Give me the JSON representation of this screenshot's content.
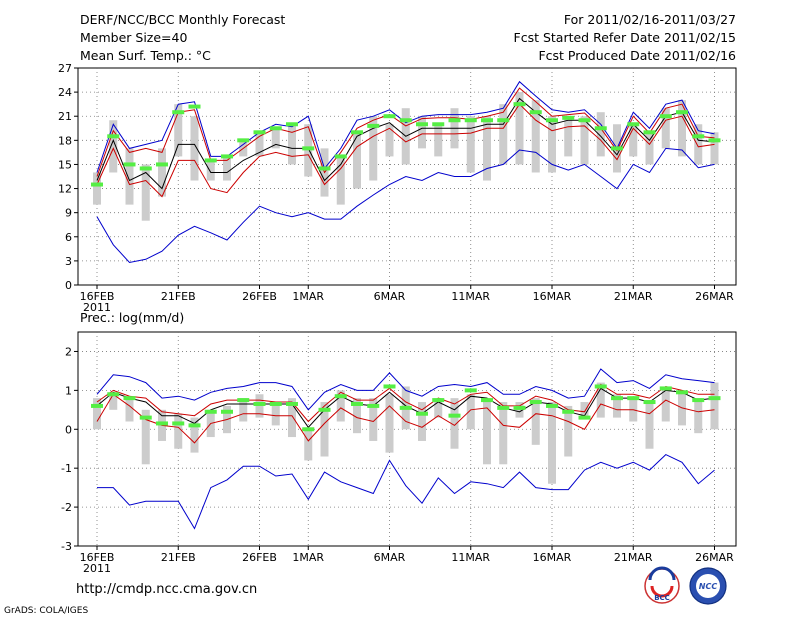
{
  "header": {
    "title": "DERF/NCC/BCC Monthly Forecast",
    "member_size": "Member Size=40",
    "variable": "Mean Surf. Temp.: °C",
    "period": "For 2011/02/16-2011/03/27",
    "started": "Fcst Started Refer Date 2011/02/15",
    "produced": "Fcst Produced Date 2011/02/16"
  },
  "second_title": "Prec.: log(mm/d)",
  "footer": {
    "url": "http://cmdp.ncc.cma.gov.cn",
    "grads": "GrADS: COLA/IGES"
  },
  "logos": {
    "bcc_text": "BCC",
    "ncc_text": "NCC"
  },
  "colors": {
    "max_min": "#0000cc",
    "quantile": "#cc0000",
    "mean": "#000000",
    "obs": "#55ee44",
    "spread": "#cccccc"
  },
  "chart_data": [
    {
      "type": "line",
      "title": "Mean Surf. Temp.: °C",
      "x_tick_labels": [
        "16FEB",
        "21FEB",
        "26FEB",
        "1MAR",
        "6MAR",
        "11MAR",
        "16MAR",
        "21MAR",
        "26MAR"
      ],
      "x_tick_index": [
        0,
        5,
        10,
        13,
        18,
        23,
        28,
        33,
        38
      ],
      "x_year_label": "2011",
      "ylim": [
        0,
        27
      ],
      "yticks": [
        0,
        3,
        6,
        9,
        12,
        15,
        18,
        21,
        24,
        27
      ],
      "ytick_labels": [
        "0",
        "3",
        "6",
        "9",
        "12",
        "15",
        "18",
        "21",
        "24",
        "27"
      ],
      "series": [
        {
          "name": "max",
          "values": [
            14,
            20,
            17,
            17.5,
            18,
            22.5,
            22.8,
            16,
            16,
            17.5,
            19,
            20,
            19.7,
            21,
            14.5,
            17,
            20.5,
            21,
            21.8,
            20.2,
            21,
            21.2,
            21.2,
            21.2,
            21.5,
            22,
            25.3,
            23.5,
            21.8,
            21.5,
            21.8,
            20,
            17,
            21.5,
            19.5,
            22.5,
            23,
            19.2,
            18.8
          ]
        },
        {
          "name": "q75",
          "values": [
            13.5,
            19.2,
            16.5,
            17,
            16.5,
            21.5,
            21.8,
            15.5,
            15.5,
            17,
            18.5,
            19.5,
            19,
            19.7,
            14,
            16.5,
            19.5,
            20.5,
            21.2,
            19.8,
            20.7,
            20.8,
            20.8,
            20.6,
            21,
            21.5,
            24.5,
            22.8,
            21,
            21.2,
            21.4,
            19.5,
            16.7,
            21,
            18.9,
            22,
            22.5,
            18.5,
            18.3
          ]
        },
        {
          "name": "mean",
          "values": [
            13,
            18,
            13,
            14,
            12,
            17.5,
            17.5,
            14,
            14,
            15.5,
            16.5,
            17.5,
            17,
            17,
            13,
            15,
            18.5,
            19.5,
            20.2,
            18.5,
            19.5,
            19.5,
            19.5,
            19.5,
            20,
            20,
            23.2,
            21.5,
            20,
            20.5,
            20.5,
            18.5,
            16.2,
            20,
            18,
            21,
            21.5,
            18,
            17.8
          ]
        },
        {
          "name": "q25",
          "values": [
            12.5,
            17,
            12.5,
            13,
            11,
            15.5,
            15.5,
            12,
            11.5,
            14,
            16,
            16.5,
            16,
            16.2,
            12.5,
            14.5,
            17.2,
            18.5,
            19.5,
            17.8,
            18.8,
            18.8,
            18.8,
            18.9,
            19.5,
            19.5,
            22.5,
            20.5,
            19.2,
            19.7,
            19.8,
            18,
            15.6,
            19.5,
            17.5,
            20.5,
            21,
            17.2,
            17.5
          ]
        },
        {
          "name": "min",
          "values": [
            8.5,
            5,
            2.8,
            3.2,
            4.2,
            6.2,
            7.3,
            6.5,
            5.6,
            7.8,
            9.8,
            9,
            8.5,
            9,
            8.2,
            8.2,
            9.8,
            11.2,
            12.5,
            13.5,
            13,
            14,
            13.5,
            13.5,
            14.5,
            15,
            16.8,
            16.5,
            15,
            14.3,
            15,
            13.5,
            12,
            15,
            14,
            17,
            16.8,
            14.6,
            15
          ]
        }
      ],
      "spread_bars": [
        [
          10,
          14
        ],
        [
          14,
          20.5
        ],
        [
          10,
          17
        ],
        [
          8,
          15
        ],
        [
          11,
          17
        ],
        [
          16,
          22.5
        ],
        [
          13,
          21
        ],
        [
          13,
          15.5
        ],
        [
          13,
          16
        ],
        [
          16,
          18
        ],
        [
          16,
          19
        ],
        [
          17,
          19.5
        ],
        [
          15,
          20
        ],
        [
          13.5,
          20
        ],
        [
          11,
          17
        ],
        [
          10,
          16
        ],
        [
          12,
          19
        ],
        [
          13,
          21
        ],
        [
          16,
          20
        ],
        [
          15,
          22
        ],
        [
          17,
          21
        ],
        [
          16,
          20
        ],
        [
          17,
          22
        ],
        [
          14,
          21
        ],
        [
          13,
          21
        ],
        [
          15,
          22.5
        ],
        [
          15,
          24
        ],
        [
          14,
          23
        ],
        [
          14,
          21
        ],
        [
          16,
          21
        ],
        [
          15,
          21
        ],
        [
          16,
          21.5
        ],
        [
          14,
          20
        ],
        [
          16,
          20
        ],
        [
          15,
          19
        ],
        [
          17,
          22
        ],
        [
          16,
          23
        ],
        [
          15,
          20
        ],
        [
          15,
          19
        ]
      ],
      "obs": [
        12.5,
        18.5,
        15,
        14.5,
        15,
        21.5,
        22.2,
        15.5,
        16,
        18,
        19,
        19.5,
        20,
        17,
        14.5,
        16,
        19,
        19.8,
        21,
        20.5,
        20,
        20,
        20.5,
        20.5,
        20.5,
        20.5,
        22.5,
        21.5,
        20.5,
        20.8,
        20.5,
        19.5,
        17,
        20,
        19,
        21,
        21.5,
        18.5,
        18
      ]
    },
    {
      "type": "line",
      "title": "Prec.: log(mm/d)",
      "x_tick_labels": [
        "16FEB",
        "21FEB",
        "26FEB",
        "1MAR",
        "6MAR",
        "11MAR",
        "16MAR",
        "21MAR",
        "26MAR"
      ],
      "x_tick_index": [
        0,
        5,
        10,
        13,
        18,
        23,
        28,
        33,
        38
      ],
      "x_year_label": "2011",
      "ylim": [
        -3,
        2.5
      ],
      "yticks": [
        -3,
        -2,
        -1,
        0,
        1,
        2
      ],
      "ytick_labels": [
        "-3",
        "-2",
        "-1",
        "0",
        "1",
        "2"
      ],
      "series": [
        {
          "name": "max",
          "values": [
            0.9,
            1.4,
            1.35,
            1.2,
            0.8,
            0.85,
            0.75,
            0.95,
            1.05,
            1.1,
            1.2,
            1.2,
            1.1,
            0.5,
            0.95,
            1.15,
            1.0,
            1.0,
            1.45,
            1.0,
            0.85,
            1.1,
            1.15,
            1.1,
            1.2,
            0.9,
            0.9,
            1.1,
            1.0,
            0.8,
            0.85,
            1.55,
            1.2,
            1.25,
            1.05,
            1.4,
            1.3,
            1.25,
            1.2
          ]
        },
        {
          "name": "q75",
          "values": [
            0.7,
            1.0,
            0.85,
            0.8,
            0.45,
            0.4,
            0.35,
            0.65,
            0.75,
            0.75,
            0.75,
            0.7,
            0.7,
            0.2,
            0.6,
            0.95,
            0.75,
            0.75,
            1.05,
            0.7,
            0.5,
            0.8,
            0.65,
            0.9,
            0.95,
            0.6,
            0.6,
            0.85,
            0.75,
            0.5,
            0.45,
            1.15,
            0.9,
            0.9,
            0.8,
            1.1,
            1.0,
            0.9,
            0.9
          ]
        },
        {
          "name": "mean",
          "values": [
            0.6,
            0.95,
            0.8,
            0.7,
            0.35,
            0.35,
            0.15,
            0.5,
            0.65,
            0.65,
            0.65,
            0.65,
            0.65,
            0.05,
            0.5,
            0.85,
            0.65,
            0.6,
            0.95,
            0.6,
            0.4,
            0.7,
            0.5,
            0.85,
            0.8,
            0.55,
            0.45,
            0.7,
            0.65,
            0.45,
            0.35,
            1.05,
            0.8,
            0.8,
            0.7,
            1.0,
            0.95,
            0.75,
            0.8
          ]
        },
        {
          "name": "q25",
          "values": [
            0.2,
            0.9,
            0.6,
            0.25,
            0.1,
            0.05,
            -0.35,
            0.15,
            0.25,
            0.4,
            0.4,
            0.35,
            0.35,
            -0.3,
            0.15,
            0.55,
            0.3,
            0.2,
            0.6,
            0.2,
            0.05,
            0.35,
            0.1,
            0.5,
            0.55,
            0.1,
            0.05,
            0.4,
            0.35,
            0.2,
            0.0,
            0.65,
            0.5,
            0.5,
            0.4,
            0.75,
            0.55,
            0.45,
            0.5
          ]
        },
        {
          "name": "min",
          "values": [
            -1.5,
            -1.5,
            -1.95,
            -1.85,
            -1.85,
            -1.85,
            -2.55,
            -1.5,
            -1.3,
            -0.95,
            -0.95,
            -1.2,
            -1.15,
            -1.8,
            -1.1,
            -1.35,
            -1.5,
            -1.65,
            -0.8,
            -1.45,
            -1.9,
            -1.25,
            -1.65,
            -1.35,
            -1.4,
            -1.5,
            -1.1,
            -1.5,
            -1.55,
            -1.55,
            -1.05,
            -0.85,
            -1.0,
            -0.85,
            -1.05,
            -0.65,
            -0.85,
            -1.4,
            -1.05
          ]
        }
      ],
      "spread_bars": [
        [
          0,
          0.8
        ],
        [
          0.5,
          0.9
        ],
        [
          0.2,
          0.8
        ],
        [
          -0.9,
          0.5
        ],
        [
          -0.3,
          0.5
        ],
        [
          -0.5,
          0.4
        ],
        [
          -0.6,
          0.3
        ],
        [
          -0.2,
          0.5
        ],
        [
          -0.1,
          0.6
        ],
        [
          0.2,
          0.8
        ],
        [
          0.3,
          0.9
        ],
        [
          0.1,
          0.7
        ],
        [
          -0.2,
          0.8
        ],
        [
          -0.8,
          0
        ],
        [
          -0.7,
          0.7
        ],
        [
          0.2,
          1.0
        ],
        [
          -0.1,
          0.8
        ],
        [
          -0.3,
          0.8
        ],
        [
          -0.6,
          0.9
        ],
        [
          0,
          1.1
        ],
        [
          -0.3,
          0.7
        ],
        [
          0.3,
          0.8
        ],
        [
          -0.5,
          0.8
        ],
        [
          0,
          0.9
        ],
        [
          -0.9,
          0.8
        ],
        [
          -0.9,
          0.7
        ],
        [
          0.3,
          0.7
        ],
        [
          -0.4,
          0.8
        ],
        [
          -1.4,
          0.7
        ],
        [
          -0.7,
          0.6
        ],
        [
          0.3,
          0.7
        ],
        [
          0.3,
          1.2
        ],
        [
          0.3,
          0.9
        ],
        [
          0.2,
          0.8
        ],
        [
          -0.5,
          0.7
        ],
        [
          0.2,
          1.0
        ],
        [
          0.1,
          1.0
        ],
        [
          -0.1,
          0.8
        ],
        [
          0,
          1.2
        ]
      ],
      "obs": [
        0.6,
        0.9,
        0.8,
        0.3,
        0.15,
        0.15,
        0.1,
        0.45,
        0.45,
        0.75,
        0.65,
        0.65,
        0.65,
        0.0,
        0.5,
        0.85,
        0.65,
        0.6,
        1.1,
        0.55,
        0.4,
        0.75,
        0.35,
        1.0,
        0.75,
        0.55,
        0.55,
        0.7,
        0.6,
        0.45,
        0.3,
        1.1,
        0.8,
        0.8,
        0.7,
        1.05,
        0.95,
        0.75,
        0.8
      ]
    }
  ]
}
